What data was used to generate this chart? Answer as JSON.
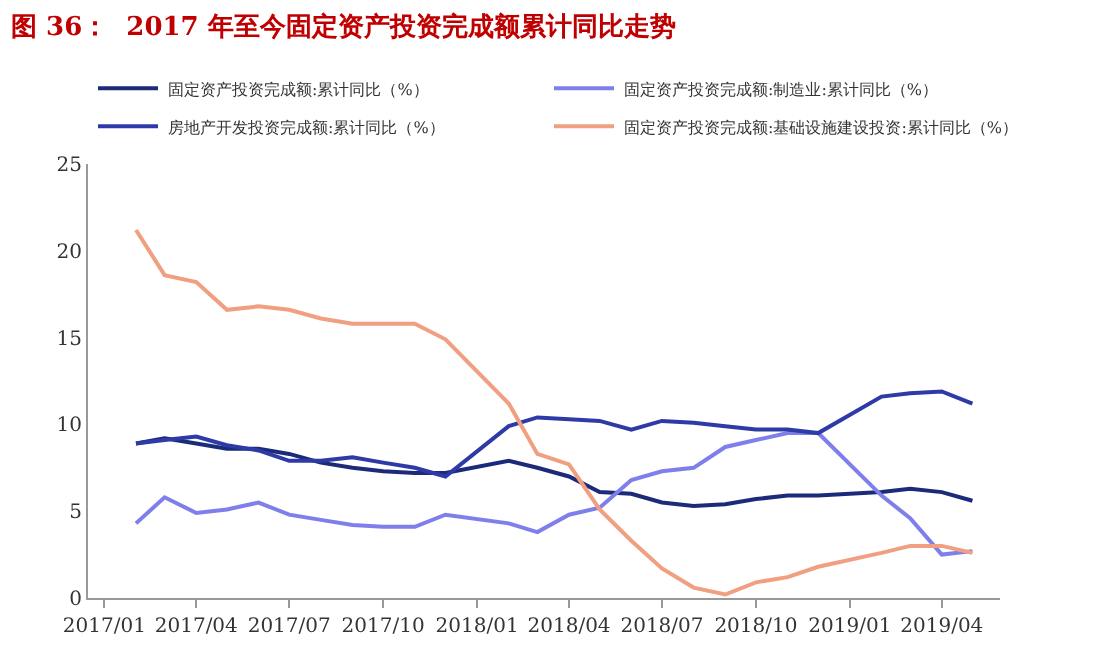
{
  "chart_data": {
    "type": "line",
    "title": "图 36：  2017 年至今固定资产投资完成额累计同比走势",
    "x": [
      "2017-02",
      "2017-03",
      "2017-04",
      "2017-05",
      "2017-06",
      "2017-07",
      "2017-08",
      "2017-09",
      "2017-10",
      "2017-11",
      "2017-12",
      "2018-02",
      "2018-03",
      "2018-04",
      "2018-05",
      "2018-06",
      "2018-07",
      "2018-08",
      "2018-09",
      "2018-10",
      "2018-11",
      "2018-12",
      "2019-02",
      "2019-03",
      "2019-04",
      "2019-05"
    ],
    "series": [
      {
        "name": "固定资产投资完成额:累计同比（%）",
        "color": "#1c2a7a",
        "values": [
          8.9,
          9.2,
          8.9,
          8.6,
          8.6,
          8.3,
          7.8,
          7.5,
          7.3,
          7.2,
          7.2,
          7.9,
          7.5,
          7.0,
          6.1,
          6.0,
          5.5,
          5.3,
          5.4,
          5.7,
          5.9,
          5.9,
          6.1,
          6.3,
          6.1,
          5.6
        ]
      },
      {
        "name": "固定资产投资完成额:制造业:累计同比（%）",
        "color": "#7f7fec",
        "values": [
          4.3,
          5.8,
          4.9,
          5.1,
          5.5,
          4.8,
          4.5,
          4.2,
          4.1,
          4.1,
          4.8,
          4.3,
          3.8,
          4.8,
          5.2,
          6.8,
          7.3,
          7.5,
          8.7,
          9.1,
          9.5,
          9.5,
          5.9,
          4.6,
          2.5,
          2.7
        ]
      },
      {
        "name": "房地产开发投资完成额:累计同比（%）",
        "color": "#2e3aa6",
        "values": [
          8.9,
          9.1,
          9.3,
          8.8,
          8.5,
          7.9,
          7.9,
          8.1,
          7.8,
          7.5,
          7.0,
          9.9,
          10.4,
          10.3,
          10.2,
          9.7,
          10.2,
          10.1,
          9.9,
          9.7,
          9.7,
          9.5,
          11.6,
          11.8,
          11.9,
          11.2
        ]
      },
      {
        "name": "固定资产投资完成额:基础设施建设投资:累计同比（%）",
        "color": "#f0a080",
        "values": [
          21.2,
          18.6,
          18.2,
          16.6,
          16.8,
          16.6,
          16.1,
          15.8,
          15.8,
          15.8,
          14.9,
          11.2,
          8.3,
          7.7,
          5.1,
          3.3,
          1.7,
          0.6,
          0.2,
          0.9,
          1.2,
          1.8,
          2.6,
          3.0,
          3.0,
          2.6
        ]
      }
    ],
    "xlim": [
      "2016-12-16",
      "2019-05-28"
    ],
    "xticks": [
      {
        "value": "2017-01",
        "label": "2017/01"
      },
      {
        "value": "2017-04",
        "label": "2017/04"
      },
      {
        "value": "2017-07",
        "label": "2017/07"
      },
      {
        "value": "2017-10",
        "label": "2017/10"
      },
      {
        "value": "2018-01",
        "label": "2018/01"
      },
      {
        "value": "2018-04",
        "label": "2018/04"
      },
      {
        "value": "2018-07",
        "label": "2018/07"
      },
      {
        "value": "2018-10",
        "label": "2018/10"
      },
      {
        "value": "2019-01",
        "label": "2019/01"
      },
      {
        "value": "2019-04",
        "label": "2019/04"
      }
    ],
    "ylim": [
      0,
      25
    ],
    "yticks": [
      0,
      5,
      10,
      15,
      20,
      25
    ],
    "legend": "top",
    "marker": "none",
    "line_style": "solid"
  }
}
